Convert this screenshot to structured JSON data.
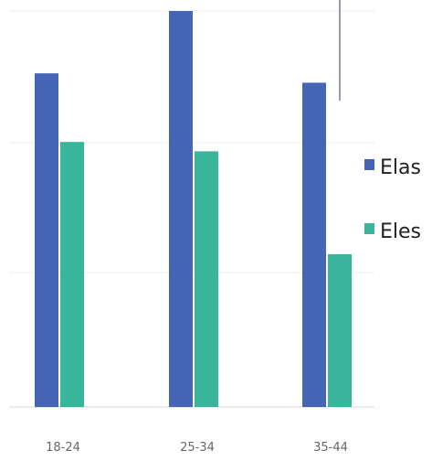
{
  "chart_data": {
    "type": "bar",
    "categories": [
      "18-24",
      "25-34",
      "35-44"
    ],
    "series": [
      {
        "name": "Elas",
        "values": [
          5.35,
          6.35,
          5.2
        ],
        "color": "#4665b4"
      },
      {
        "name": "Eles",
        "values": [
          4.25,
          4.1,
          2.45
        ],
        "color": "#38b59a"
      }
    ],
    "ylim": [
      0,
      6.35
    ],
    "grid": true,
    "legend": "right",
    "title": "",
    "xlabel": "",
    "ylabel": ""
  }
}
